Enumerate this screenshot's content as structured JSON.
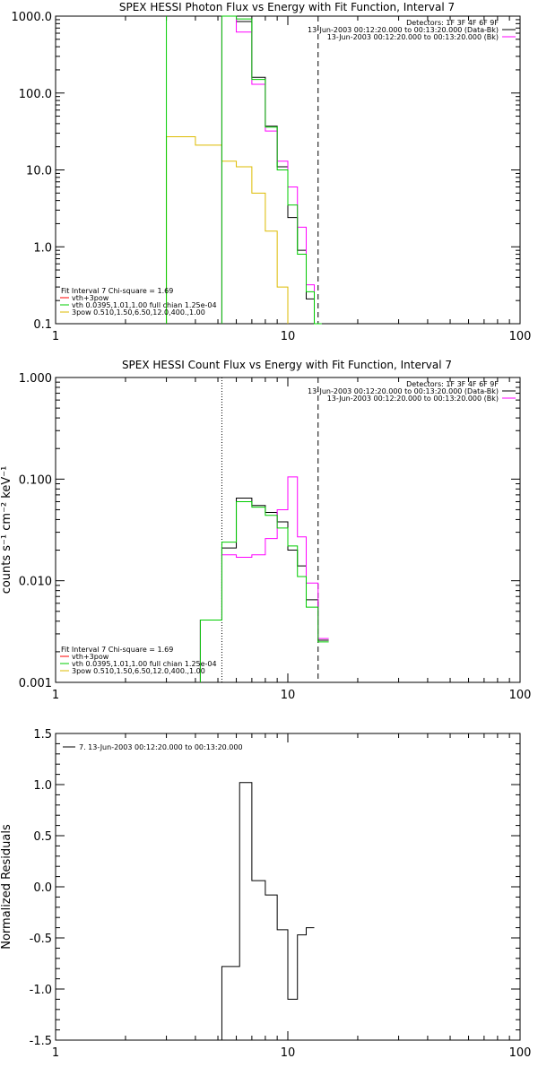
{
  "chart_data": [
    {
      "type": "line",
      "title": "SPEX HESSI Photon Flux vs Energy with Fit Function, Interval 7",
      "xlabel": "",
      "ylabel": "",
      "xscale": "log",
      "yscale": "log",
      "xlim": [
        1,
        100
      ],
      "ylim": [
        0.1,
        1000
      ],
      "xtick_labels": [
        "1",
        "10",
        "100"
      ],
      "ytick_labels": [
        "0.1",
        "1.0",
        "10.0",
        "100.0",
        "1000.0"
      ],
      "ytick_values": [
        0.1,
        1,
        10,
        100,
        1000
      ],
      "vlines": [
        {
          "x": 5.2,
          "style": "solid",
          "color": "#ff00ff"
        },
        {
          "x": 13.5,
          "style": "dashed",
          "color": "#000000"
        }
      ],
      "legend_top": [
        "Detectors: 1F 3F 4F 6F 9F",
        "13-Jun-2003 00:12:20.000 to 00:13:20.000 (Data-Bk)",
        "13-Jun-2003 00:12:20.000 to 00:13:20.000 (Bk)"
      ],
      "legend_top_colors": [
        "",
        "#000000",
        "#ff00ff"
      ],
      "legend_bottom": [
        "Fit Interval 7   Chi-square = 1.69",
        "vth+3pow",
        "vth 0.0395,1.01,1.00  full chian 1.25e-04",
        "3pow 0.510,1.50,6.50,12.0,400.,1.00"
      ],
      "legend_bottom_colors": [
        "",
        "#ff0000",
        "#00cc00",
        "#ddbb00"
      ],
      "edges": [
        5.2,
        6.0,
        7.0,
        8.0,
        9.0,
        10.0,
        11.0,
        12.0,
        13.0,
        14.0
      ],
      "series": [
        {
          "name": "13-Jun-2003 00:12:20.000 to 00:13:20.000 (Data-Bk)",
          "color": "#000000",
          "values": [
            1000,
            850,
            160,
            37,
            11,
            2.4,
            0.9,
            0.21,
            0.1
          ]
        },
        {
          "name": "13-Jun-2003 00:12:20.000 to 00:13:20.000 (Bk)",
          "color": "#ff00ff",
          "values": [
            1000,
            620,
            130,
            32,
            13,
            6,
            1.8,
            0.32,
            0.1
          ]
        },
        {
          "name": "vth 0.0395,1.01,1.00  full chian 1.25e-04",
          "color": "#00cc00",
          "values": [
            1000,
            920,
            150,
            36,
            10,
            3.5,
            0.8,
            0.26,
            0.1
          ]
        }
      ],
      "extra_series": [
        {
          "name": "3pow 0.510,1.50,6.50,12.0,400.,1.00",
          "color": "#ddbb00",
          "edges": [
            3.0,
            4.0,
            5.2,
            6.0,
            7.0,
            8.0,
            9.0,
            10.0
          ],
          "values": [
            27,
            21,
            13,
            11,
            5,
            1.6,
            0.3,
            0.1
          ]
        }
      ],
      "green_left_wall": 3.0
    },
    {
      "type": "line",
      "title": "SPEX HESSI Count Flux vs Energy with Fit Function, Interval 7",
      "xlabel": "",
      "ylabel": "counts s⁻¹ cm⁻² keV⁻¹",
      "xscale": "log",
      "yscale": "log",
      "xlim": [
        1,
        100
      ],
      "ylim": [
        0.001,
        1
      ],
      "xtick_labels": [
        "1",
        "10",
        "100"
      ],
      "ytick_labels": [
        "0.001",
        "0.010",
        "0.100",
        "1.000"
      ],
      "ytick_values": [
        0.001,
        0.01,
        0.1,
        1
      ],
      "vlines": [
        {
          "x": 5.2,
          "style": "dotted",
          "color": "#000000"
        },
        {
          "x": 13.5,
          "style": "dashed",
          "color": "#000000"
        }
      ],
      "legend_top": [
        "Detectors: 1F 3F 4F 6F 9F",
        "13-Jun-2003 00:12:20.000 to 00:13:20.000 (Data-Bk)",
        "13-Jun-2003 00:12:20.000 to 00:13:20.000 (Bk)"
      ],
      "legend_top_colors": [
        "",
        "#000000",
        "#ff00ff"
      ],
      "legend_bottom": [
        "Fit Interval 7   Chi-square = 1.69",
        "vth+3pow",
        "vth 0.0395,1.01,1.00  full chian 1.25e-04",
        "3pow 0.510,1.50,6.50,12.0,400.,1.00"
      ],
      "legend_bottom_colors": [
        "",
        "#ff0000",
        "#00cc00",
        "#ddbb00"
      ],
      "edges": [
        4.2,
        5.2,
        6.0,
        7.0,
        8.0,
        9.0,
        10.0,
        11.0,
        12.0,
        13.5,
        15.0
      ],
      "series": [
        {
          "name": "13-Jun-2003 00:12:20.000 to 00:13:20.000 (Data-Bk)",
          "color": "#000000",
          "values": [
            0.0041,
            0.021,
            0.065,
            0.055,
            0.047,
            0.038,
            0.02,
            0.014,
            0.0065,
            0.0026
          ]
        },
        {
          "name": "13-Jun-2003 00:12:20.000 to 00:13:20.000 (Bk)",
          "color": "#ff00ff",
          "values": [
            0.0041,
            0.018,
            0.017,
            0.018,
            0.026,
            0.05,
            0.105,
            0.027,
            0.0095,
            0.0027
          ]
        },
        {
          "name": "vth 0.0395,1.01,1.00  full chian 1.25e-04",
          "color": "#00cc00",
          "values": [
            0.0041,
            0.024,
            0.06,
            0.053,
            0.044,
            0.033,
            0.022,
            0.011,
            0.0055,
            0.0025
          ]
        }
      ]
    },
    {
      "type": "line",
      "title": "",
      "xlabel": "",
      "ylabel": "Normalized Residuals",
      "xscale": "log",
      "yscale": "linear",
      "xlim": [
        1,
        100
      ],
      "ylim": [
        -1.5,
        1.5
      ],
      "xtick_labels": [
        "1",
        "10",
        "100"
      ],
      "ytick_labels": [
        "-1.5",
        "-1.0",
        "-0.5",
        "0.0",
        "0.5",
        "1.0",
        "1.5"
      ],
      "ytick_values": [
        -1.5,
        -1.0,
        -0.5,
        0.0,
        0.5,
        1.0,
        1.5
      ],
      "legend_top": [
        "7. 13-Jun-2003 00:12:20.000 to 00:13:20.000"
      ],
      "edges": [
        5.2,
        6.2,
        7.0,
        8.0,
        9.0,
        10.0,
        11.0,
        12.0,
        13.0
      ],
      "series": [
        {
          "name": "7. 13-Jun-2003 00:12:20.000 to 00:13:20.000",
          "color": "#000000",
          "values": [
            -0.78,
            1.02,
            0.06,
            -0.08,
            -0.42,
            -1.1,
            -0.47,
            -0.4
          ]
        }
      ],
      "left_drop_to": -1.5
    }
  ]
}
